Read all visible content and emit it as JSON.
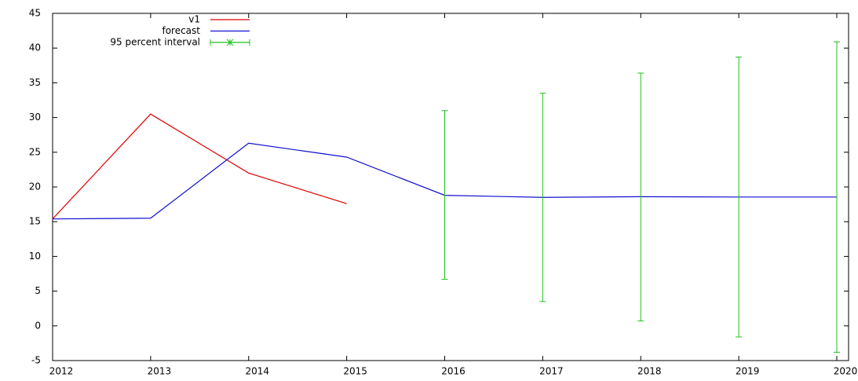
{
  "chart_data": {
    "type": "line",
    "x": [
      2012,
      2013,
      2014,
      2015,
      2016,
      2017,
      2018,
      2019,
      2020
    ],
    "series": [
      {
        "name": "v1",
        "color": "#e00000",
        "values": [
          15.4,
          30.5,
          22.0,
          17.6,
          null,
          null,
          null,
          null,
          null
        ]
      },
      {
        "name": "forecast",
        "color": "#1010d0",
        "values": [
          15.4,
          15.5,
          26.3,
          24.3,
          18.8,
          18.5,
          18.6,
          18.55,
          18.55
        ]
      },
      {
        "name": "95 percent interval",
        "color": "#20c020",
        "lower": [
          null,
          null,
          null,
          null,
          6.7,
          3.5,
          0.7,
          -1.6,
          -3.8
        ],
        "upper": [
          null,
          null,
          null,
          null,
          31.0,
          33.5,
          36.4,
          38.7,
          40.9
        ]
      }
    ],
    "xlim": [
      2012,
      2020.12
    ],
    "xticks": [
      2012,
      2013,
      2014,
      2015,
      2016,
      2017,
      2018,
      2019,
      2020
    ],
    "ylim": [
      -5,
      45
    ],
    "yticks": [
      -5,
      0,
      5,
      10,
      15,
      20,
      25,
      30,
      35,
      40,
      45
    ],
    "legend": "top-left"
  }
}
